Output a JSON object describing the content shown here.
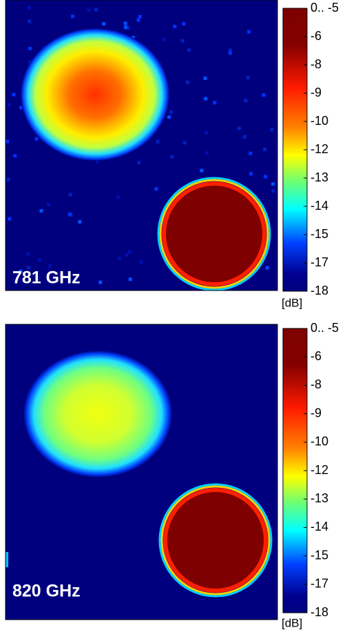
{
  "panels": [
    {
      "label": "781 GHz",
      "colorbar": {
        "ticks": [
          {
            "value": -5,
            "label": "0.. -5"
          },
          -6,
          -8,
          -9,
          -10,
          -12,
          -13,
          -14,
          -15,
          -17,
          -18
        ],
        "unit": "[dB]"
      }
    },
    {
      "label": "820 GHz",
      "colorbar": {
        "ticks": [
          {
            "value": -5,
            "label": "0.. -5"
          },
          -6,
          -8,
          -9,
          -10,
          -12,
          -13,
          -14,
          -15,
          -17,
          -18
        ],
        "unit": "[dB]"
      }
    }
  ]
}
